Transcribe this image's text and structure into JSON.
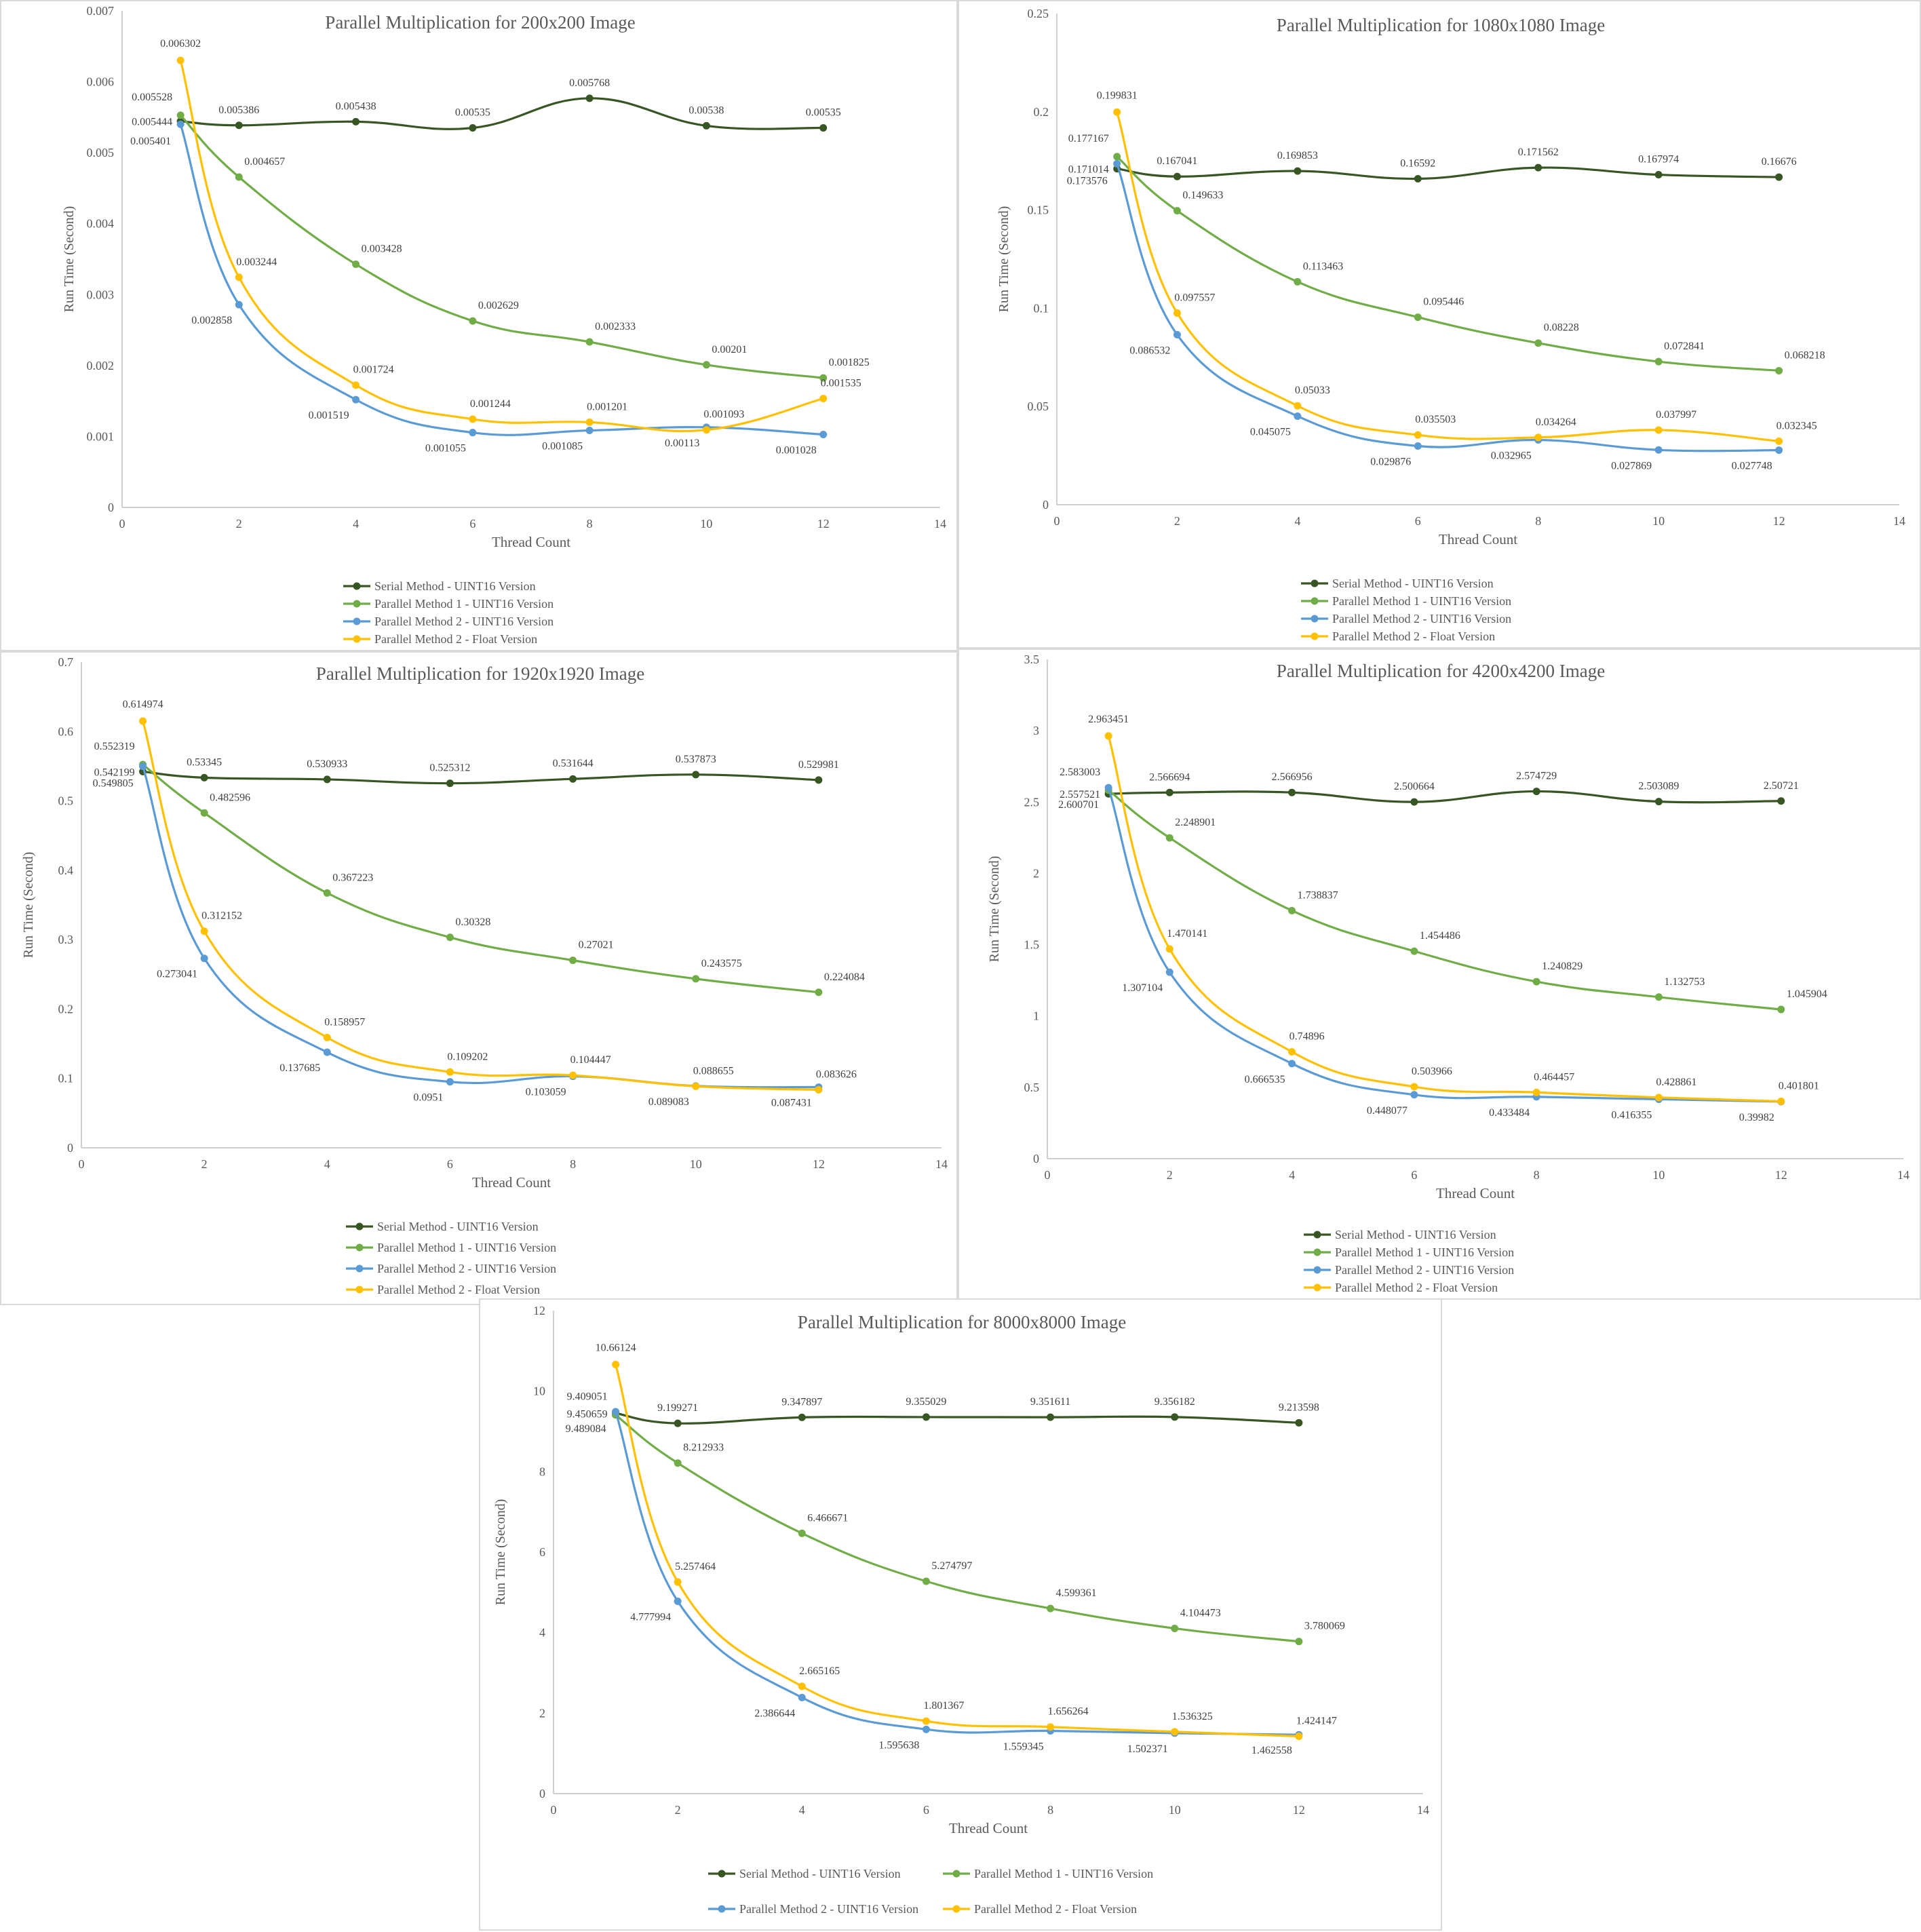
{
  "colors": {
    "serial": "#375623",
    "p1": "#70AD47",
    "p2": "#5B9BD5",
    "float": "#FFC000"
  },
  "chart_data": [
    {
      "type": "line",
      "title": "Parallel Multiplication  for 200x200 Image",
      "xlabel": "Thread Count",
      "ylabel": "Run Time (Second)",
      "xlim": [
        0,
        14
      ],
      "ylim": [
        0,
        0.007
      ],
      "x_ticks": [
        "0",
        "2",
        "4",
        "6",
        "8",
        "10",
        "12",
        "14"
      ],
      "y_ticks": [
        "0",
        "0.001",
        "0.002",
        "0.003",
        "0.004",
        "0.005",
        "0.006",
        "0.007"
      ],
      "x": [
        1,
        2,
        4,
        6,
        8,
        10,
        12
      ],
      "legend_position": "bottom",
      "series": [
        {
          "name": "Serial Method - UINT16 Version",
          "values": [
            0.005444,
            0.005386,
            0.005438,
            0.00535,
            0.005768,
            0.00538,
            0.00535
          ],
          "labels": [
            "0.005444",
            "0.005386",
            "0.005438",
            "0.00535",
            "0.005768",
            "0.00538",
            "0.00535"
          ]
        },
        {
          "name": "Parallel Method 1 - UINT16 Version",
          "values": [
            0.005528,
            0.004657,
            0.003428,
            0.002629,
            0.002333,
            0.00201,
            0.001825
          ],
          "labels": [
            "0.005528",
            "0.004657",
            "0.003428",
            "0.002629",
            "0.002333",
            "0.00201",
            "0.001825"
          ]
        },
        {
          "name": "Parallel Method 2 - UINT16 Version",
          "values": [
            0.005401,
            0.002858,
            0.001519,
            0.001055,
            0.001085,
            0.00113,
            0.001028
          ],
          "labels": [
            "0.005401",
            "0.002858",
            "0.001519",
            "0.001055",
            "0.001085",
            "0.00113",
            "0.001028"
          ]
        },
        {
          "name": "Parallel Method 2 - Float Version",
          "values": [
            0.006302,
            0.003244,
            0.001724,
            0.001244,
            0.001201,
            0.001093,
            0.001535
          ],
          "labels": [
            "0.006302",
            "0.003244",
            "0.001724",
            "0.001244",
            "0.001201",
            "0.001093",
            "0.001535"
          ]
        }
      ]
    },
    {
      "type": "line",
      "title": "Parallel Multiplication  for 1080x1080 Image",
      "xlabel": "Thread Count",
      "ylabel": "Run Time (Second)",
      "xlim": [
        0,
        14
      ],
      "ylim": [
        0,
        0.25
      ],
      "x_ticks": [
        "0",
        "2",
        "4",
        "6",
        "8",
        "10",
        "12",
        "14"
      ],
      "y_ticks": [
        "0",
        "0.05",
        "0.1",
        "0.15",
        "0.2",
        "0.25"
      ],
      "x": [
        1,
        2,
        4,
        6,
        8,
        10,
        12
      ],
      "legend_position": "bottom",
      "series": [
        {
          "name": "Serial Method - UINT16 Version",
          "values": [
            0.171014,
            0.167041,
            0.169853,
            0.16592,
            0.171562,
            0.167974,
            0.16676
          ],
          "labels": [
            "0.171014",
            "0.167041",
            "0.169853",
            "0.16592",
            "0.171562",
            "0.167974",
            "0.16676"
          ]
        },
        {
          "name": "Parallel Method 1 - UINT16 Version",
          "values": [
            0.177167,
            0.149633,
            0.113463,
            0.095446,
            0.08228,
            0.072841,
            0.068218
          ],
          "labels": [
            "0.177167",
            "0.149633",
            "0.113463",
            "0.095446",
            "0.08228",
            "0.072841",
            "0.068218"
          ]
        },
        {
          "name": "Parallel Method 2 - UINT16 Version",
          "values": [
            0.173576,
            0.086532,
            0.045075,
            0.029876,
            0.032965,
            0.027869,
            0.027748
          ],
          "labels": [
            "0.173576",
            "0.086532",
            "0.045075",
            "0.029876",
            "0.032965",
            "0.027869",
            "0.027748"
          ]
        },
        {
          "name": "Parallel Method 2 - Float Version",
          "values": [
            0.199831,
            0.097557,
            0.05033,
            0.035503,
            0.034264,
            0.037997,
            0.032345
          ],
          "labels": [
            "0.199831",
            "0.097557",
            "0.05033",
            "0.035503",
            "0.034264",
            "0.037997",
            "0.032345"
          ]
        }
      ]
    },
    {
      "type": "line",
      "title": "Parallel Multiplication  for 1920x1920 Image",
      "xlabel": "Thread Count",
      "ylabel": "Run Time (Second)",
      "xlim": [
        0,
        14
      ],
      "ylim": [
        0,
        0.7
      ],
      "x_ticks": [
        "0",
        "2",
        "4",
        "6",
        "8",
        "10",
        "12",
        "14"
      ],
      "y_ticks": [
        "0",
        "0.1",
        "0.2",
        "0.3",
        "0.4",
        "0.5",
        "0.6",
        "0.7"
      ],
      "x": [
        1,
        2,
        4,
        6,
        8,
        10,
        12
      ],
      "legend_position": "bottom",
      "series": [
        {
          "name": "Serial Method - UINT16 Version",
          "values": [
            0.542199,
            0.53345,
            0.530933,
            0.525312,
            0.531644,
            0.537873,
            0.529981
          ],
          "labels": [
            "0.542199",
            "0.53345",
            "0.530933",
            "0.525312",
            "0.531644",
            "0.537873",
            "0.529981"
          ]
        },
        {
          "name": "Parallel Method 1 - UINT16 Version",
          "values": [
            0.552319,
            0.482596,
            0.367223,
            0.30328,
            0.27021,
            0.243575,
            0.224084
          ],
          "labels": [
            "0.552319",
            "0.482596",
            "0.367223",
            "0.30328",
            "0.27021",
            "0.243575",
            "0.224084"
          ]
        },
        {
          "name": "Parallel Method 2 - UINT16 Version",
          "values": [
            0.549805,
            0.273041,
            0.137685,
            0.0951,
            0.103059,
            0.089083,
            0.087431
          ],
          "labels": [
            "0.549805",
            "0.273041",
            "0.137685",
            "0.0951",
            "0.103059",
            "0.089083",
            "0.087431"
          ]
        },
        {
          "name": "Parallel Method 2 - Float Version",
          "values": [
            0.614974,
            0.312152,
            0.158957,
            0.109202,
            0.104447,
            0.088655,
            0.083626
          ],
          "labels": [
            "0.614974",
            "0.312152",
            "0.158957",
            "0.109202",
            "0.104447",
            "0.088655",
            "0.083626"
          ]
        }
      ]
    },
    {
      "type": "line",
      "title": "Parallel Multiplication  for 4200x4200 Image",
      "xlabel": "Thread Count",
      "ylabel": "Run Time (Second)",
      "xlim": [
        0,
        14
      ],
      "ylim": [
        0,
        3.5
      ],
      "x_ticks": [
        "0",
        "2",
        "4",
        "6",
        "8",
        "10",
        "12",
        "14"
      ],
      "y_ticks": [
        "0",
        "0.5",
        "1",
        "1.5",
        "2",
        "2.5",
        "3",
        "3.5"
      ],
      "x": [
        1,
        2,
        4,
        6,
        8,
        10,
        12
      ],
      "legend_position": "bottom",
      "series": [
        {
          "name": "Serial Method - UINT16 Version",
          "values": [
            2.557521,
            2.566694,
            2.566956,
            2.500664,
            2.574729,
            2.503089,
            2.50721
          ],
          "labels": [
            "2.557521",
            "2.566694",
            "2.566956",
            "2.500664",
            "2.574729",
            "2.503089",
            "2.50721"
          ]
        },
        {
          "name": "Parallel Method 1 - UINT16 Version",
          "values": [
            2.583003,
            2.248901,
            1.738837,
            1.454486,
            1.240829,
            1.132753,
            1.045904
          ],
          "labels": [
            "2.583003",
            "2.248901",
            "1.738837",
            "1.454486",
            "1.240829",
            "1.132753",
            "1.045904"
          ]
        },
        {
          "name": "Parallel Method 2 - UINT16 Version",
          "values": [
            2.600701,
            1.307104,
            0.666535,
            0.448077,
            0.433484,
            0.416355,
            0.39982
          ],
          "labels": [
            "2.600701",
            "1.307104",
            "0.666535",
            "0.448077",
            "0.433484",
            "0.416355",
            "0.39982"
          ]
        },
        {
          "name": "Parallel Method 2 - Float Version",
          "values": [
            2.963451,
            1.470141,
            0.74896,
            0.503966,
            0.464457,
            0.428861,
            0.401801
          ],
          "labels": [
            "2.963451",
            "1.470141",
            "0.74896",
            "0.503966",
            "0.464457",
            "0.428861",
            "0.401801"
          ]
        }
      ]
    },
    {
      "type": "line",
      "title": "Parallel Multiplication  for 8000x8000 Image",
      "xlabel": "Thread Count",
      "ylabel": "Run Time (Second)",
      "xlim": [
        0,
        14
      ],
      "ylim": [
        0,
        12
      ],
      "x_ticks": [
        "0",
        "2",
        "4",
        "6",
        "8",
        "10",
        "12",
        "14"
      ],
      "y_ticks": [
        "0",
        "2",
        "4",
        "6",
        "8",
        "10",
        "12"
      ],
      "x": [
        1,
        2,
        4,
        6,
        8,
        10,
        12
      ],
      "legend_position": "bottom",
      "series": [
        {
          "name": "Serial Method - UINT16 Version",
          "values": [
            9.450659,
            9.199271,
            9.347897,
            9.355029,
            9.351611,
            9.356182,
            9.213598
          ],
          "labels": [
            "9.450659",
            "9.199271",
            "9.347897",
            "9.355029",
            "9.351611",
            "9.356182",
            "9.213598"
          ]
        },
        {
          "name": "Parallel Method 1 - UINT16 Version",
          "values": [
            9.409051,
            8.212933,
            6.466671,
            5.274797,
            4.599361,
            4.104473,
            3.780069
          ],
          "labels": [
            "9.409051",
            "8.212933",
            "6.466671",
            "5.274797",
            "4.599361",
            "4.104473",
            "3.780069"
          ]
        },
        {
          "name": "Parallel Method 2 - UINT16 Version",
          "values": [
            9.489084,
            4.777994,
            2.386644,
            1.595638,
            1.559345,
            1.502371,
            1.462558
          ],
          "labels": [
            "9.489084",
            "4.777994",
            "2.386644",
            "1.595638",
            "1.559345",
            "1.502371",
            "1.462558"
          ]
        },
        {
          "name": "Parallel Method 2 - Float Version",
          "values": [
            10.66124,
            5.257464,
            2.665165,
            1.801367,
            1.656264,
            1.536325,
            1.424147
          ],
          "labels": [
            "10.66124",
            "5.257464",
            "2.665165",
            "1.801367",
            "1.656264",
            "1.536325",
            "1.424147"
          ]
        }
      ]
    }
  ]
}
